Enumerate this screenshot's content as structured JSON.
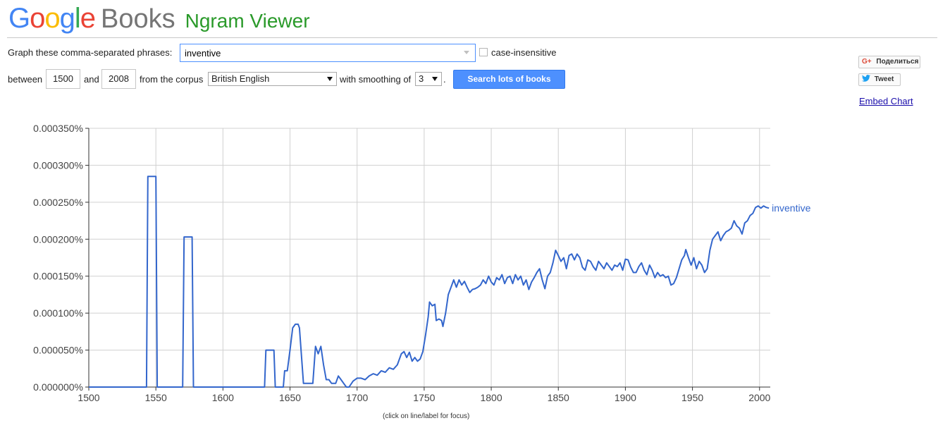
{
  "header": {
    "logo_google": "Google",
    "logo_books": "Books",
    "title": "Ngram Viewer",
    "logo_colors": [
      "#4285f4",
      "#ea4335",
      "#fbbc05",
      "#4285f4",
      "#34a853",
      "#ea4335"
    ]
  },
  "query": {
    "phrases_label": "Graph these comma-separated phrases:",
    "phrases_value": "inventive",
    "case_insensitive_label": "case-insensitive",
    "between_label": "between",
    "year_start": "1500",
    "and_label": "and",
    "year_end": "2008",
    "corpus_label": "from the corpus",
    "corpus_value": "British English",
    "smoothing_label": "with smoothing of",
    "smoothing_value": "3",
    "smoothing_suffix": ".",
    "search_button": "Search lots of books"
  },
  "share": {
    "gplus_label": "Поделиться",
    "tweet_label": "Tweet",
    "embed_label": "Embed Chart"
  },
  "footer": {
    "hint": "(click on line/label for focus)"
  },
  "chart_data": {
    "type": "line",
    "title": "",
    "xlabel": "",
    "ylabel": "",
    "xlim": [
      1500,
      2008
    ],
    "ylim": [
      0,
      0.00035
    ],
    "x_ticks": [
      1500,
      1550,
      1600,
      1650,
      1700,
      1750,
      1800,
      1850,
      1900,
      1950,
      2000
    ],
    "y_ticks": [
      0,
      5e-05,
      0.0001,
      0.00015,
      0.0002,
      0.00025,
      0.0003,
      0.00035
    ],
    "y_tick_labels": [
      "0.000000%",
      "0.000050%",
      "0.000100%",
      "0.000150%",
      "0.000200%",
      "0.000250%",
      "0.000300%",
      "0.000350%"
    ],
    "grid": true,
    "series": [
      {
        "name": "inventive",
        "color": "#3366cc",
        "points": [
          [
            1500,
            0
          ],
          [
            1543,
            0
          ],
          [
            1544,
            0.000285
          ],
          [
            1550,
            0.000285
          ],
          [
            1551,
            0
          ],
          [
            1570,
            0
          ],
          [
            1571,
            0.000203
          ],
          [
            1577,
            0.000203
          ],
          [
            1578,
            0
          ],
          [
            1631,
            0
          ],
          [
            1632,
            5e-05
          ],
          [
            1638,
            5e-05
          ],
          [
            1639,
            0
          ],
          [
            1645,
            0
          ],
          [
            1646,
            2.2e-05
          ],
          [
            1648,
            2.2e-05
          ],
          [
            1650,
            5e-05
          ],
          [
            1652,
            8e-05
          ],
          [
            1654,
            8.5e-05
          ],
          [
            1656,
            8.5e-05
          ],
          [
            1657,
            8e-05
          ],
          [
            1659,
            3e-05
          ],
          [
            1660,
            5e-06
          ],
          [
            1663,
            5e-06
          ],
          [
            1667,
            5e-06
          ],
          [
            1669,
            5.5e-05
          ],
          [
            1671,
            4.5e-05
          ],
          [
            1673,
            5.5e-05
          ],
          [
            1675,
            3e-05
          ],
          [
            1677,
            1e-05
          ],
          [
            1679,
            1e-05
          ],
          [
            1681,
            5e-06
          ],
          [
            1684,
            5e-06
          ],
          [
            1686,
            1.5e-05
          ],
          [
            1688,
            1e-05
          ],
          [
            1690,
            5e-06
          ],
          [
            1692,
            0
          ],
          [
            1694,
            0
          ],
          [
            1697,
            8e-06
          ],
          [
            1700,
            1.2e-05
          ],
          [
            1703,
            1.2e-05
          ],
          [
            1706,
            1e-05
          ],
          [
            1709,
            1.5e-05
          ],
          [
            1712,
            1.8e-05
          ],
          [
            1715,
            1.6e-05
          ],
          [
            1718,
            2.2e-05
          ],
          [
            1721,
            2e-05
          ],
          [
            1724,
            2.6e-05
          ],
          [
            1727,
            2.4e-05
          ],
          [
            1730,
            3e-05
          ],
          [
            1733,
            4.5e-05
          ],
          [
            1735,
            4.8e-05
          ],
          [
            1737,
            4e-05
          ],
          [
            1739,
            4.7e-05
          ],
          [
            1741,
            3.5e-05
          ],
          [
            1743,
            4e-05
          ],
          [
            1745,
            3.5e-05
          ],
          [
            1747,
            3.8e-05
          ],
          [
            1749,
            4.8e-05
          ],
          [
            1751,
            7e-05
          ],
          [
            1753,
            9.5e-05
          ],
          [
            1754,
            0.000115
          ],
          [
            1756,
            0.00011
          ],
          [
            1758,
            0.000112
          ],
          [
            1759,
            9e-05
          ],
          [
            1761,
            9.2e-05
          ],
          [
            1763,
            9e-05
          ],
          [
            1764,
            8.2e-05
          ],
          [
            1766,
            0.0001
          ],
          [
            1768,
            0.000125
          ],
          [
            1770,
            0.000135
          ],
          [
            1772,
            0.000145
          ],
          [
            1774,
            0.000135
          ],
          [
            1776,
            0.000145
          ],
          [
            1778,
            0.000138
          ],
          [
            1780,
            0.000143
          ],
          [
            1782,
            0.000135
          ],
          [
            1784,
            0.000128
          ],
          [
            1786,
            0.000132
          ],
          [
            1788,
            0.000133
          ],
          [
            1790,
            0.000135
          ],
          [
            1792,
            0.000138
          ],
          [
            1794,
            0.000145
          ],
          [
            1796,
            0.00014
          ],
          [
            1798,
            0.00015
          ],
          [
            1800,
            0.000142
          ],
          [
            1802,
            0.000138
          ],
          [
            1804,
            0.000148
          ],
          [
            1806,
            0.000145
          ],
          [
            1808,
            0.000152
          ],
          [
            1810,
            0.00014
          ],
          [
            1812,
            0.000148
          ],
          [
            1814,
            0.00015
          ],
          [
            1816,
            0.00014
          ],
          [
            1818,
            0.000152
          ],
          [
            1820,
            0.000145
          ],
          [
            1822,
            0.00015
          ],
          [
            1824,
            0.000138
          ],
          [
            1826,
            0.000145
          ],
          [
            1828,
            0.000132
          ],
          [
            1830,
            0.000142
          ],
          [
            1832,
            0.000148
          ],
          [
            1834,
            0.000155
          ],
          [
            1836,
            0.00016
          ],
          [
            1838,
            0.000145
          ],
          [
            1840,
            0.000133
          ],
          [
            1842,
            0.00015
          ],
          [
            1844,
            0.000155
          ],
          [
            1846,
            0.000168
          ],
          [
            1848,
            0.000185
          ],
          [
            1850,
            0.000178
          ],
          [
            1852,
            0.00017
          ],
          [
            1854,
            0.000175
          ],
          [
            1856,
            0.00016
          ],
          [
            1858,
            0.000178
          ],
          [
            1860,
            0.00018
          ],
          [
            1862,
            0.000172
          ],
          [
            1864,
            0.00018
          ],
          [
            1866,
            0.000175
          ],
          [
            1868,
            0.000162
          ],
          [
            1870,
            0.000158
          ],
          [
            1872,
            0.000172
          ],
          [
            1874,
            0.00017
          ],
          [
            1876,
            0.000163
          ],
          [
            1878,
            0.000158
          ],
          [
            1880,
            0.00017
          ],
          [
            1882,
            0.000165
          ],
          [
            1884,
            0.00016
          ],
          [
            1886,
            0.000168
          ],
          [
            1888,
            0.000163
          ],
          [
            1890,
            0.000158
          ],
          [
            1892,
            0.000165
          ],
          [
            1894,
            0.000163
          ],
          [
            1896,
            0.000168
          ],
          [
            1898,
            0.000158
          ],
          [
            1900,
            0.000173
          ],
          [
            1902,
            0.000172
          ],
          [
            1904,
            0.000162
          ],
          [
            1906,
            0.000155
          ],
          [
            1908,
            0.000155
          ],
          [
            1910,
            0.000163
          ],
          [
            1912,
            0.000168
          ],
          [
            1914,
            0.000158
          ],
          [
            1916,
            0.000152
          ],
          [
            1918,
            0.000165
          ],
          [
            1920,
            0.000158
          ],
          [
            1922,
            0.000148
          ],
          [
            1924,
            0.000155
          ],
          [
            1926,
            0.00015
          ],
          [
            1928,
            0.000152
          ],
          [
            1930,
            0.000148
          ],
          [
            1932,
            0.00015
          ],
          [
            1934,
            0.000138
          ],
          [
            1936,
            0.00014
          ],
          [
            1938,
            0.000148
          ],
          [
            1940,
            0.00016
          ],
          [
            1942,
            0.000172
          ],
          [
            1944,
            0.000178
          ],
          [
            1945,
            0.000186
          ],
          [
            1947,
            0.000175
          ],
          [
            1949,
            0.000165
          ],
          [
            1951,
            0.000175
          ],
          [
            1953,
            0.00016
          ],
          [
            1955,
            0.00017
          ],
          [
            1957,
            0.000165
          ],
          [
            1959,
            0.000155
          ],
          [
            1961,
            0.00016
          ],
          [
            1963,
            0.000185
          ],
          [
            1965,
            0.0002
          ],
          [
            1967,
            0.000205
          ],
          [
            1969,
            0.00021
          ],
          [
            1971,
            0.000198
          ],
          [
            1973,
            0.000205
          ],
          [
            1975,
            0.00021
          ],
          [
            1977,
            0.000212
          ],
          [
            1979,
            0.000215
          ],
          [
            1981,
            0.000225
          ],
          [
            1983,
            0.000218
          ],
          [
            1985,
            0.000215
          ],
          [
            1987,
            0.000207
          ],
          [
            1989,
            0.000222
          ],
          [
            1991,
            0.000225
          ],
          [
            1993,
            0.000232
          ],
          [
            1995,
            0.000235
          ],
          [
            1997,
            0.000243
          ],
          [
            1999,
            0.000245
          ],
          [
            2001,
            0.000242
          ],
          [
            2003,
            0.000245
          ],
          [
            2005,
            0.000243
          ],
          [
            2007,
            0.000242
          ]
        ]
      }
    ]
  }
}
